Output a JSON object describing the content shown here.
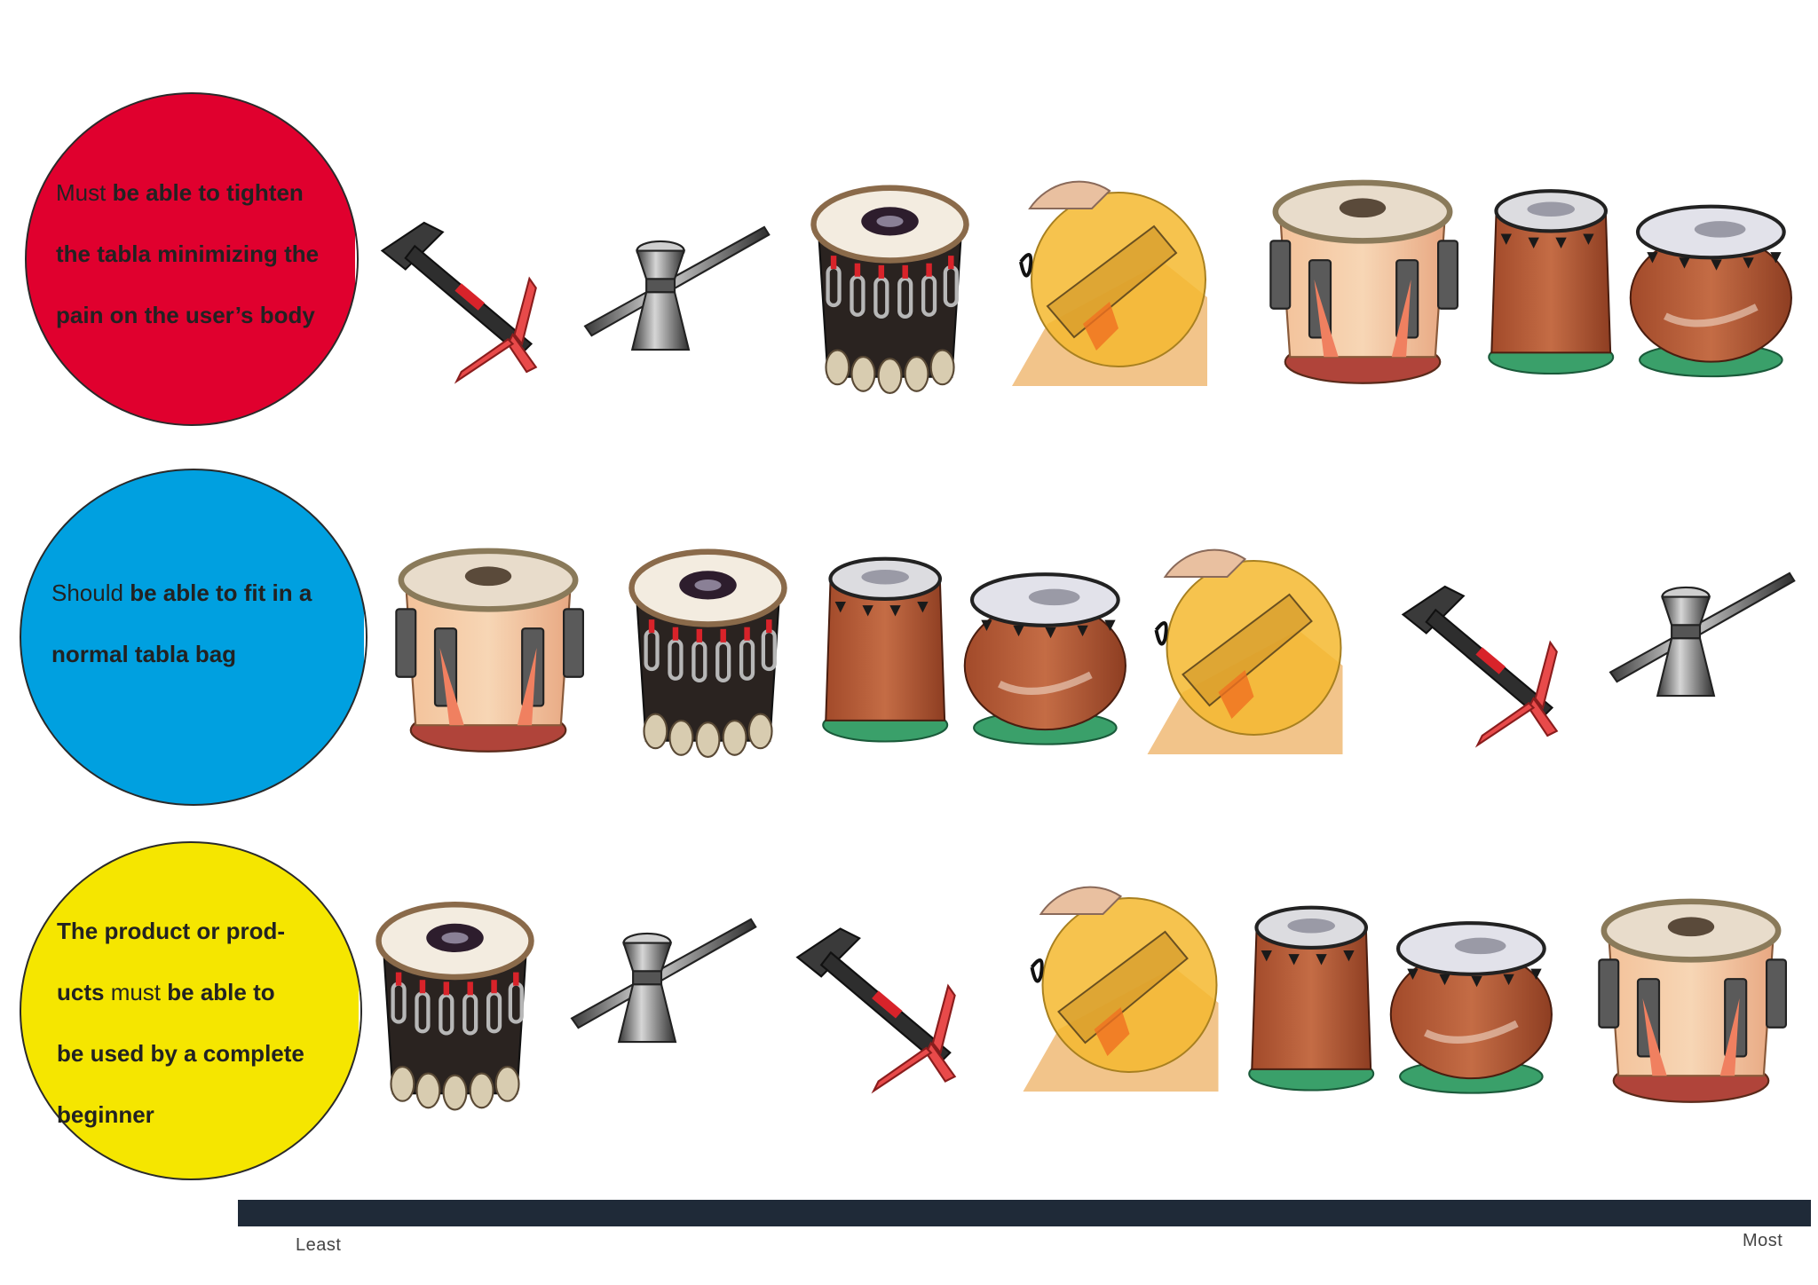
{
  "criteria": [
    {
      "color": "#e0002e",
      "lines": [
        [
          {
            "t": "Must ",
            "b": false
          },
          {
            "t": "be able to tighten",
            "b": true
          }
        ],
        [
          {
            "t": "the tabla minimizing the",
            "b": true
          }
        ],
        [
          {
            "t": "pain on the user’s body",
            "b": true
          }
        ]
      ],
      "ranking": [
        "hammer-icon",
        "tuning-tool-icon",
        "tabla-ring-clamp-icon",
        "shoulder-strap-icon",
        "tabla-set-strap-icon",
        "tabla-pair-icon"
      ]
    },
    {
      "color": "#00a0e0",
      "lines": [
        [
          {
            "t": "Should ",
            "b": false
          },
          {
            "t": "be able to fit in a",
            "b": true
          }
        ],
        [
          {
            "t": "normal tabla bag",
            "b": true
          }
        ]
      ],
      "ranking": [
        "tabla-set-strap-icon",
        "tabla-ring-clamp-icon",
        "tabla-pair-icon",
        "shoulder-strap-icon",
        "hammer-icon",
        "tuning-tool-icon"
      ]
    },
    {
      "color": "#f5e600",
      "lines": [
        [
          {
            "t": "The product or prod-",
            "b": true
          }
        ],
        [
          {
            "t": "ucts",
            "b": true
          },
          {
            "t": " must ",
            "b": false
          },
          {
            "t": "be able to",
            "b": true
          }
        ],
        [
          {
            "t": "be used by a complete",
            "b": true
          }
        ],
        [
          {
            "t": "beginner",
            "b": true
          }
        ]
      ],
      "ranking": [
        "tabla-ring-clamp-icon",
        "tuning-tool-icon",
        "hammer-icon",
        "shoulder-strap-icon",
        "tabla-pair-icon",
        "tabla-set-strap-icon"
      ]
    }
  ],
  "scale": {
    "least_label": "Least",
    "most_label": "Most",
    "bar_color": "#1f2a38"
  }
}
